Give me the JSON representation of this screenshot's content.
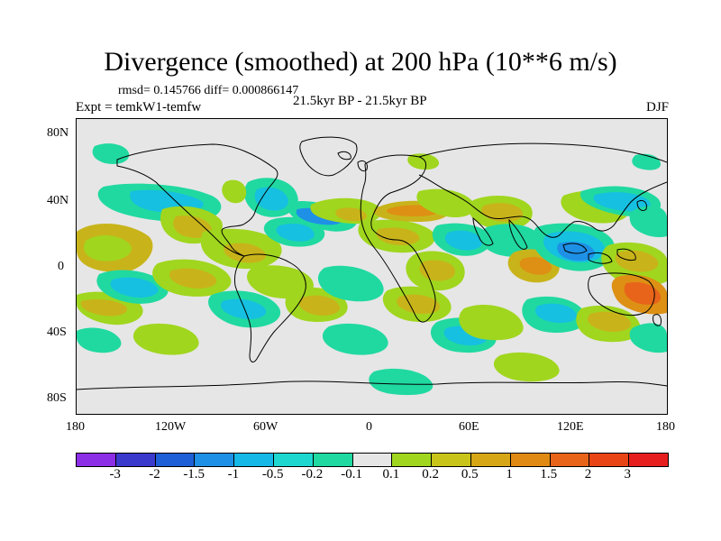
{
  "title": "Divergence (smoothed) at 200 hPa (10**6 m/s)",
  "stats": "rmsd= 0.145766 diff= 0.000866147",
  "experiment": "Expt = temkW1-temfw",
  "period": "21.5kyr BP - 21.5kyr BP",
  "season": "DJF",
  "y_axis_labels": [
    "80N",
    "40N",
    "0",
    "40S",
    "80S"
  ],
  "x_axis_labels": [
    "180",
    "120W",
    "60W",
    "0",
    "60E",
    "120E",
    "180"
  ],
  "colorbar": {
    "colors": [
      "#8c2ee6",
      "#3a3acc",
      "#1c5fd6",
      "#1e90e6",
      "#16b8e8",
      "#1ed8d0",
      "#20d9a0",
      "#e6e6e6",
      "#a0d61e",
      "#c8c41a",
      "#d6a616",
      "#e08a14",
      "#e8641a",
      "#e84416",
      "#e61e1e"
    ],
    "labels": [
      "-3",
      "-2",
      "-1.5",
      "-1",
      "-0.5",
      "-0.2",
      "-0.1",
      "0.1",
      "0.2",
      "0.5",
      "1",
      "1.5",
      "2",
      "3"
    ]
  },
  "colors": {
    "background_grey": "#e6e6e6",
    "positive_weak": "#a0d61e",
    "positive_mid": "#c8b41a",
    "positive_strong": "#dd9014",
    "negative_weak": "#20d9a0",
    "negative_mid": "#16c0e0",
    "negative_strong": "#1e90e6",
    "coastline": "#000000"
  }
}
